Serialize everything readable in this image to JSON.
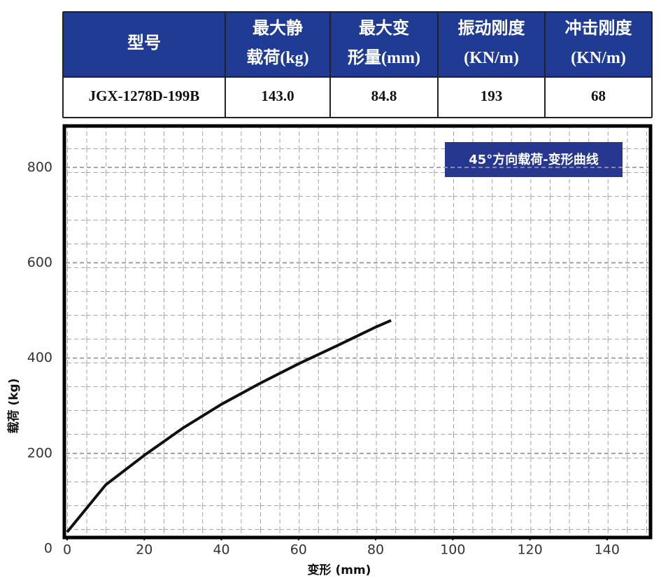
{
  "table": {
    "header": [
      [
        "型号"
      ],
      [
        "最大静",
        "载荷(kg)"
      ],
      [
        "最大变",
        "形量(mm)"
      ],
      [
        "振动刚度",
        "(KN/m)"
      ],
      [
        "冲击刚度",
        "(KN/m)"
      ]
    ],
    "rows": [
      [
        "JGX-1278D-199B",
        "143.0",
        "84.8",
        "193",
        "68"
      ]
    ]
  },
  "chart_data": {
    "type": "line",
    "title": "45°方向载荷-变形曲线",
    "x_label": "变形 (mm)",
    "y_label": "载荷 (kg)",
    "x": [
      0,
      10,
      20,
      30,
      40,
      50,
      60,
      70,
      80,
      84
    ],
    "series": [
      {
        "color": "#111111",
        "values": [
          35,
          134,
          196,
          253,
          303,
          347,
          388,
          426,
          465,
          479
        ]
      }
    ],
    "xlim": [
      0,
      150
    ],
    "ylim": [
      0,
      890
    ],
    "xticks": [
      0,
      20,
      40,
      60,
      80,
      100,
      120,
      140
    ],
    "yticks": [
      0,
      200,
      400,
      600,
      800
    ]
  }
}
